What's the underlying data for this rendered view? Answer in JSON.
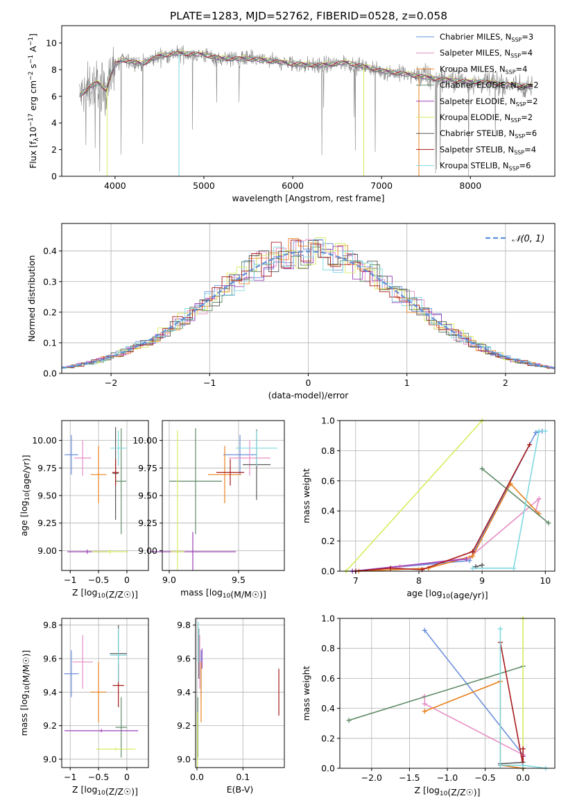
{
  "title": "PLATE=1283, MJD=52762, FIBERID=0528, z=0.058",
  "colors": {
    "chabrier_miles": "#6a8fdc",
    "salpeter_miles": "#e68cc4",
    "kroupa_miles": "#e8801c",
    "chabrier_elodie": "#5e8a66",
    "salpeter_elodie": "#9a3fb8",
    "kroupa_elodie": "#d6ec5c",
    "chabrier_stelib": "#555555",
    "salpeter_stelib": "#a81818",
    "kroupa_stelib": "#7fd8e0",
    "data_spectrum": "#808080",
    "normal_curve": "#5b8fd9",
    "grid": "#b0b0b0"
  },
  "chart_data": [
    {
      "id": "spectrum",
      "type": "line",
      "title": "PLATE=1283, MJD=52762, FIBERID=0528, z=0.058",
      "xlabel": "wavelength [Angstrom, rest frame]",
      "ylabel_parts": [
        "Flux [f",
        "λ",
        "10",
        "−17",
        " erg cm",
        "−2",
        " s",
        "−1",
        " A",
        "−1",
        "]"
      ],
      "xlim": [
        3400,
        8950
      ],
      "ylim": [
        0,
        11.3
      ],
      "xticks": [
        4000,
        5000,
        6000,
        7000,
        8000
      ],
      "yticks": [
        0,
        2,
        4,
        6,
        8,
        10
      ],
      "grid": false,
      "legend_position": "top-right",
      "legend": [
        {
          "label": "Chabrier MILES, N",
          "sub": "SSP",
          "value": "=3",
          "color": "#6a8fdc"
        },
        {
          "label": "Salpeter MILES, N",
          "sub": "SSP",
          "value": "=4",
          "color": "#e68cc4"
        },
        {
          "label": "Kroupa MILES, N",
          "sub": "SSP",
          "value": "=4",
          "color": "#e8801c"
        },
        {
          "label": "Chabrier ELODIE, N",
          "sub": "SSP",
          "value": "=2",
          "color": "#5e8a66"
        },
        {
          "label": "Salpeter ELODIE, N",
          "sub": "SSP",
          "value": "=2",
          "color": "#9a3fb8"
        },
        {
          "label": "Kroupa ELODIE, N",
          "sub": "SSP",
          "value": "=2",
          "color": "#d6ec5c"
        },
        {
          "label": "Chabrier STELIB, N",
          "sub": "SSP",
          "value": "=6",
          "color": "#555555"
        },
        {
          "label": "Salpeter STELIB, N",
          "sub": "SSP",
          "value": "=4",
          "color": "#a81818"
        },
        {
          "label": "Kroupa STELIB, N",
          "sub": "SSP",
          "value": "=6",
          "color": "#7fd8e0"
        }
      ],
      "continuum": [
        [
          3600,
          6.0
        ],
        [
          3700,
          6.6
        ],
        [
          3800,
          7.0
        ],
        [
          3900,
          6.5
        ],
        [
          4000,
          8.4
        ],
        [
          4100,
          8.7
        ],
        [
          4300,
          8.4
        ],
        [
          4500,
          9.0
        ],
        [
          4700,
          9.2
        ],
        [
          5000,
          9.1
        ],
        [
          5200,
          8.8
        ],
        [
          5500,
          8.8
        ],
        [
          5800,
          8.6
        ],
        [
          6000,
          8.4
        ],
        [
          6300,
          8.3
        ],
        [
          6600,
          8.5
        ],
        [
          6800,
          8.2
        ],
        [
          7000,
          7.9
        ],
        [
          7300,
          7.6
        ],
        [
          7600,
          7.3
        ],
        [
          7900,
          7.1
        ],
        [
          8200,
          7.0
        ],
        [
          8500,
          6.8
        ],
        [
          8700,
          6.7
        ]
      ]
    },
    {
      "id": "residual-histogram",
      "type": "line",
      "xlabel": "(data-model)/error",
      "ylabel": "Normed distribution",
      "xlim": [
        -2.5,
        2.5
      ],
      "ylim": [
        0,
        0.49
      ],
      "xticks": [
        -2,
        -1,
        0,
        1,
        2
      ],
      "yticks": [
        0.0,
        0.1,
        0.2,
        0.3,
        0.4
      ],
      "grid": true,
      "legend_position": "top-right",
      "legend": [
        {
          "label": "𝒩(0, 1)",
          "style": "dashed",
          "color": "#5b8fd9"
        }
      ],
      "bin_width": 0.1,
      "curve": "normal pdf, mean 0, sigma 1"
    },
    {
      "id": "age-vs-Z",
      "type": "scatter",
      "xlabel": "Z [log10(Z/Z☉)]",
      "ylabel": "age  [log10(age/yr)]",
      "xlim": [
        -1.15,
        0.38
      ],
      "ylim": [
        8.82,
        10.18
      ],
      "xticks": [
        -1,
        -0.5,
        0
      ],
      "yticks": [
        9.0,
        9.25,
        9.5,
        9.75,
        10.0
      ],
      "grid": true,
      "points": [
        {
          "color": "#6a8fdc",
          "x": -0.98,
          "xerr": 0.12,
          "y": 9.87,
          "yerr": 0.18
        },
        {
          "color": "#e68cc4",
          "x": -0.78,
          "xerr": 0.15,
          "y": 9.84,
          "yerr": 0.16
        },
        {
          "color": "#e8801c",
          "x": -0.5,
          "xerr": 0.14,
          "y": 9.69,
          "yerr": 0.26
        },
        {
          "color": "#5e8a66",
          "x": -0.1,
          "xerr": 0.09,
          "y": 9.63,
          "yerr": 0.48
        },
        {
          "color": "#9a3fb8",
          "x": -0.7,
          "xerr": 0.35,
          "y": 8.99,
          "yerr": 0.02
        },
        {
          "color": "#d6ec5c",
          "x": -0.3,
          "xerr": 0.32,
          "y": 8.99,
          "yerr": 0.02
        },
        {
          "color": "#555555",
          "x": -0.2,
          "xerr": 0.05,
          "y": 9.7,
          "yerr": 0.42
        },
        {
          "color": "#a81818",
          "x": -0.2,
          "xerr": 0.06,
          "y": 9.71,
          "yerr": 0.12
        },
        {
          "color": "#7fd8e0",
          "x": -0.15,
          "xerr": 0.14,
          "y": 9.93,
          "yerr": 0.16
        }
      ]
    },
    {
      "id": "age-vs-mass",
      "type": "scatter",
      "xlabel": "mass [log10(M/M☉)]",
      "ylabel": "",
      "xlim": [
        8.95,
        9.83
      ],
      "ylim": [
        8.82,
        10.18
      ],
      "xticks": [
        9.0,
        9.5
      ],
      "yticks": [
        9.0,
        9.25,
        9.5,
        9.75,
        10.0
      ],
      "grid": true,
      "points": [
        {
          "color": "#6a8fdc",
          "x": 9.51,
          "xerr": 0.12,
          "y": 9.87,
          "yerr": 0.18
        },
        {
          "color": "#e68cc4",
          "x": 9.58,
          "xerr": 0.15,
          "y": 9.84,
          "yerr": 0.16
        },
        {
          "color": "#e8801c",
          "x": 9.4,
          "xerr": 0.12,
          "y": 9.69,
          "yerr": 0.26
        },
        {
          "color": "#5e8a66",
          "x": 9.19,
          "xerr": 0.19,
          "y": 9.63,
          "yerr": 0.48
        },
        {
          "color": "#9a3fb8",
          "x": 9.17,
          "xerr": 0.31,
          "y": 8.99,
          "yerr": 0.18
        },
        {
          "color": "#d6ec5c",
          "x": 9.06,
          "xerr": 0.05,
          "y": 8.99,
          "yerr": 1.1
        },
        {
          "color": "#555555",
          "x": 9.63,
          "xerr": 0.1,
          "y": 9.78,
          "yerr": 0.32
        },
        {
          "color": "#a81818",
          "x": 9.44,
          "xerr": 0.1,
          "y": 9.71,
          "yerr": 0.12
        },
        {
          "color": "#7fd8e0",
          "x": 9.63,
          "xerr": 0.15,
          "y": 9.93,
          "yerr": 0.16
        }
      ]
    },
    {
      "id": "weight-vs-age",
      "type": "line",
      "xlabel": "age  [log10(age/yr)]",
      "ylabel": "mass weight",
      "xlim": [
        6.75,
        10.15
      ],
      "ylim": [
        0,
        1
      ],
      "xticks": [
        7,
        8,
        9,
        10
      ],
      "yticks": [
        0.0,
        0.2,
        0.4,
        0.6,
        0.8,
        1.0
      ],
      "grid": true,
      "series": [
        {
          "color": "#6a8fdc",
          "points": [
            [
              6.95,
              0.0
            ],
            [
              8.8,
              0.07
            ],
            [
              9.85,
              0.92
            ],
            [
              9.95,
              0.93
            ]
          ]
        },
        {
          "color": "#e68cc4",
          "points": [
            [
              6.95,
              0.0
            ],
            [
              7.7,
              0.03
            ],
            [
              8.8,
              0.09
            ],
            [
              9.9,
              0.48
            ],
            [
              9.85,
              0.4
            ]
          ]
        },
        {
          "color": "#e8801c",
          "points": [
            [
              7.05,
              0.0
            ],
            [
              8.15,
              0.02
            ],
            [
              8.85,
              0.1
            ],
            [
              9.45,
              0.58
            ],
            [
              9.9,
              0.38
            ]
          ]
        },
        {
          "color": "#5e8a66",
          "points": [
            [
              9.0,
              0.68
            ],
            [
              10.05,
              0.32
            ]
          ]
        },
        {
          "color": "#9a3fb8",
          "points": [
            [
              6.95,
              0.0
            ],
            [
              8.75,
              0.08
            ]
          ]
        },
        {
          "color": "#d6ec5c",
          "points": [
            [
              6.85,
              0.0
            ],
            [
              9.0,
              1.0
            ]
          ]
        },
        {
          "color": "#555555",
          "points": [
            [
              8.9,
              0.03
            ],
            [
              9.0,
              0.04
            ]
          ]
        },
        {
          "color": "#a81818",
          "points": [
            [
              7.0,
              0.0
            ],
            [
              7.55,
              0.02
            ],
            [
              8.05,
              0.01
            ],
            [
              8.85,
              0.13
            ],
            [
              9.75,
              0.84
            ]
          ]
        },
        {
          "color": "#7fd8e0",
          "points": [
            [
              8.85,
              0.02
            ],
            [
              9.5,
              0.02
            ],
            [
              9.9,
              0.93
            ],
            [
              10.0,
              0.93
            ]
          ]
        }
      ]
    },
    {
      "id": "mass-vs-Z",
      "type": "scatter",
      "xlabel": "Z [log10(Z/Z☉)]",
      "ylabel": "mass [log10(M/M☉)]",
      "xlim": [
        -1.15,
        0.38
      ],
      "ylim": [
        8.95,
        9.84
      ],
      "xticks": [
        -1,
        -0.5,
        0
      ],
      "yticks": [
        9.0,
        9.2,
        9.4,
        9.6,
        9.8
      ],
      "grid": true,
      "points": [
        {
          "color": "#6a8fdc",
          "x": -0.98,
          "xerr": 0.13,
          "y": 9.51,
          "yerr": 0.14
        },
        {
          "color": "#e68cc4",
          "x": -0.78,
          "xerr": 0.18,
          "y": 9.58,
          "yerr": 0.16
        },
        {
          "color": "#e8801c",
          "x": -0.5,
          "xerr": 0.14,
          "y": 9.4,
          "yerr": 0.18
        },
        {
          "color": "#5e8a66",
          "x": -0.1,
          "xerr": 0.1,
          "y": 9.19,
          "yerr": 0.18
        },
        {
          "color": "#9a3fb8",
          "x": -0.45,
          "xerr": 0.65,
          "y": 9.17,
          "yerr": 0.01
        },
        {
          "color": "#d6ec5c",
          "x": -0.2,
          "xerr": 0.35,
          "y": 9.06,
          "yerr": 0.01
        },
        {
          "color": "#555555",
          "x": -0.15,
          "xerr": 0.15,
          "y": 9.63,
          "yerr": 0.17
        },
        {
          "color": "#a81818",
          "x": -0.15,
          "xerr": 0.1,
          "y": 9.44,
          "yerr": 0.13
        },
        {
          "color": "#7fd8e0",
          "x": -0.15,
          "xerr": 0.15,
          "y": 9.62,
          "yerr": 0.16
        }
      ]
    },
    {
      "id": "mass-vs-ebv",
      "type": "scatter",
      "xlabel": "E(B-V)",
      "ylabel": "",
      "xlim": [
        -0.003,
        0.19
      ],
      "ylim": [
        8.95,
        9.84
      ],
      "xticks": [
        0.0,
        0.1
      ],
      "yticks": [
        9.0,
        9.2,
        9.4,
        9.6,
        9.8
      ],
      "grid": true,
      "points": [
        {
          "color": "#6a8fdc",
          "x": 0.009,
          "xerr": 0.0,
          "y": 9.51,
          "yerr": 0.14
        },
        {
          "color": "#e68cc4",
          "x": 0.006,
          "xerr": 0.0,
          "y": 9.58,
          "yerr": 0.16
        },
        {
          "color": "#e8801c",
          "x": 0.009,
          "xerr": 0.0,
          "y": 9.4,
          "yerr": 0.18
        },
        {
          "color": "#5e8a66",
          "x": 0.002,
          "xerr": 0.0,
          "y": 9.19,
          "yerr": 0.18
        },
        {
          "color": "#9a3fb8",
          "x": 0.011,
          "xerr": 0.0,
          "y": 9.6,
          "yerr": 0.06
        },
        {
          "color": "#d6ec5c",
          "x": 0.001,
          "xerr": 0.0,
          "y": 9.06,
          "yerr": 0.22
        },
        {
          "color": "#555555",
          "x": 0.004,
          "xerr": 0.0,
          "y": 9.63,
          "yerr": 0.15
        },
        {
          "color": "#a81818",
          "x": 0.178,
          "xerr": 0.0,
          "y": 9.4,
          "yerr": 0.14
        },
        {
          "color": "#7fd8e0",
          "x": 0.003,
          "xerr": 0.0,
          "y": 9.7,
          "yerr": 0.12
        }
      ]
    },
    {
      "id": "weight-vs-Z",
      "type": "line",
      "xlabel": "Z [log10(Z/Z☉)]",
      "ylabel": "mass weight",
      "xlim": [
        -2.42,
        0.42
      ],
      "ylim": [
        0,
        1
      ],
      "xticks": [
        -2.0,
        -1.5,
        -1.0,
        -0.5,
        0.0
      ],
      "yticks": [
        0.0,
        0.2,
        0.4,
        0.6,
        0.8,
        1.0
      ],
      "grid": true,
      "series": [
        {
          "color": "#6a8fdc",
          "points": [
            [
              -1.3,
              0.92
            ],
            [
              0.0,
              0.09
            ],
            [
              0.0,
              0.0
            ]
          ]
        },
        {
          "color": "#e68cc4",
          "points": [
            [
              -1.3,
              0.48
            ],
            [
              -1.3,
              0.43
            ],
            [
              0.0,
              0.09
            ],
            [
              0.0,
              0.0
            ]
          ]
        },
        {
          "color": "#e8801c",
          "points": [
            [
              -1.3,
              0.38
            ],
            [
              -0.3,
              0.58
            ],
            [
              -0.3,
              0.02
            ],
            [
              0.0,
              0.0
            ]
          ]
        },
        {
          "color": "#5e8a66",
          "points": [
            [
              -2.3,
              0.32
            ],
            [
              0.0,
              0.68
            ]
          ]
        },
        {
          "color": "#9a3fb8",
          "points": [
            [
              0.0,
              0.0
            ],
            [
              0.0,
              0.08
            ]
          ]
        },
        {
          "color": "#d6ec5c",
          "points": [
            [
              0.0,
              0.0
            ],
            [
              0.0,
              1.0
            ]
          ]
        },
        {
          "color": "#555555",
          "points": [
            [
              -0.3,
              0.03
            ],
            [
              0.0,
              0.04
            ]
          ]
        },
        {
          "color": "#a81818",
          "points": [
            [
              -0.3,
              0.84
            ],
            [
              0.0,
              0.02
            ],
            [
              0.0,
              0.13
            ]
          ]
        },
        {
          "color": "#7fd8e0",
          "points": [
            [
              -0.3,
              0.93
            ],
            [
              -0.3,
              0.02
            ],
            [
              0.0,
              0.02
            ],
            [
              0.3,
              0.0
            ]
          ]
        }
      ]
    }
  ]
}
